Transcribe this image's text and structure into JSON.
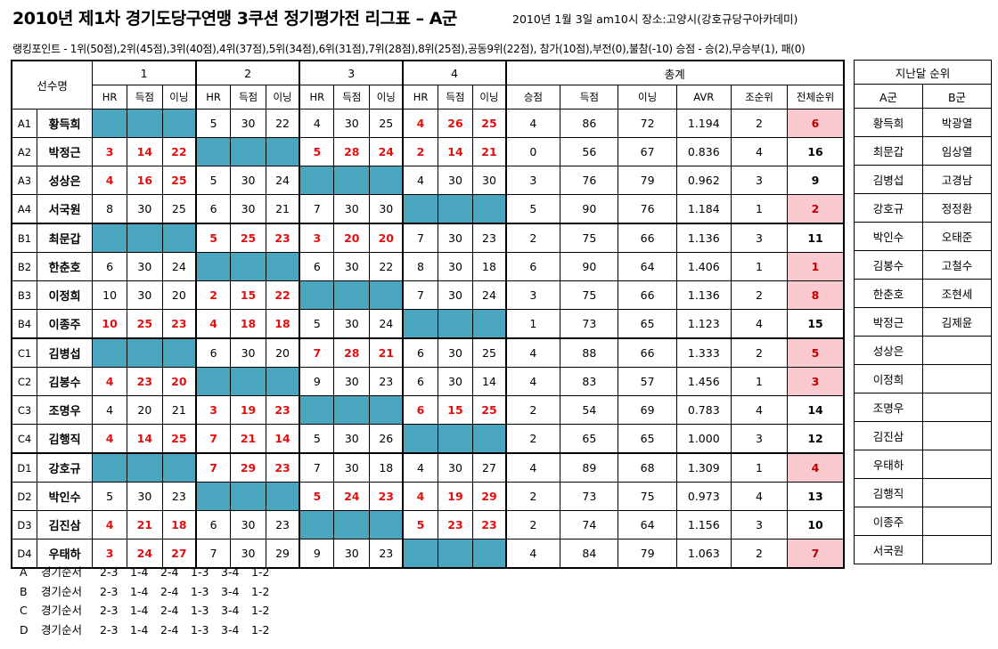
{
  "header": {
    "title": "2010년 제1차 경기도당구연맹 3쿠션 정기평가전 리그표 – A군",
    "meta": "2010년 1월 3일 am10시  장소:고양시(강호규당구아카데미)",
    "points": "랭킹포인트 - 1위(50점),2위(45점),3위(40점),4위(37점),5위(34점),6위(31점),7위(28점),8위(25점),공동9위(22점), 참가(10점),부전(0),불참(-10)  승점 - 승(2),무승부(1), 패(0)"
  },
  "table": {
    "player_col": "선수명",
    "rounds": [
      "1",
      "2",
      "3",
      "4"
    ],
    "total": "총계",
    "sub": [
      "HR",
      "득점",
      "이닝"
    ],
    "total_sub": [
      "승점",
      "득점",
      "이닝",
      "AVR",
      "조순위",
      "전체순위"
    ],
    "rows": [
      {
        "id": "A1",
        "name": "황득희",
        "r": [
          null,
          [
            "5",
            "30",
            "22"
          ],
          [
            "4",
            "30",
            "25"
          ],
          [
            "4",
            "26",
            "25"
          ]
        ],
        "red": [
          0,
          0,
          0,
          1
        ],
        "t": [
          "4",
          "86",
          "72",
          "1.194",
          "2",
          "6"
        ],
        "pink": true
      },
      {
        "id": "A2",
        "name": "박정근",
        "r": [
          [
            "3",
            "14",
            "22"
          ],
          null,
          [
            "5",
            "28",
            "24"
          ],
          [
            "2",
            "14",
            "21"
          ]
        ],
        "red": [
          1,
          0,
          1,
          1
        ],
        "t": [
          "0",
          "56",
          "67",
          "0.836",
          "4",
          "16"
        ],
        "pink": false
      },
      {
        "id": "A3",
        "name": "성상은",
        "r": [
          [
            "4",
            "16",
            "25"
          ],
          [
            "5",
            "30",
            "24"
          ],
          null,
          [
            "4",
            "30",
            "30"
          ]
        ],
        "red": [
          1,
          0,
          0,
          0
        ],
        "t": [
          "3",
          "76",
          "79",
          "0.962",
          "3",
          "9"
        ],
        "pink": false
      },
      {
        "id": "A4",
        "name": "서국원",
        "r": [
          [
            "8",
            "30",
            "25"
          ],
          [
            "6",
            "30",
            "21"
          ],
          [
            "7",
            "30",
            "30"
          ],
          null
        ],
        "red": [
          0,
          0,
          0,
          0
        ],
        "t": [
          "5",
          "90",
          "76",
          "1.184",
          "1",
          "2"
        ],
        "pink": true
      },
      {
        "id": "B1",
        "name": "최문갑",
        "r": [
          null,
          [
            "5",
            "25",
            "23"
          ],
          [
            "3",
            "20",
            "20"
          ],
          [
            "7",
            "30",
            "23"
          ]
        ],
        "red": [
          0,
          1,
          1,
          0
        ],
        "t": [
          "2",
          "75",
          "66",
          "1.136",
          "3",
          "11"
        ],
        "pink": false
      },
      {
        "id": "B2",
        "name": "한춘호",
        "r": [
          [
            "6",
            "30",
            "24"
          ],
          null,
          [
            "6",
            "30",
            "22"
          ],
          [
            "8",
            "30",
            "18"
          ]
        ],
        "red": [
          0,
          0,
          0,
          0
        ],
        "t": [
          "6",
          "90",
          "64",
          "1.406",
          "1",
          "1"
        ],
        "pink": true
      },
      {
        "id": "B3",
        "name": "이정희",
        "r": [
          [
            "10",
            "30",
            "20"
          ],
          [
            "2",
            "15",
            "22"
          ],
          null,
          [
            "7",
            "30",
            "24"
          ]
        ],
        "red": [
          0,
          1,
          0,
          0
        ],
        "t": [
          "3",
          "75",
          "66",
          "1.136",
          "2",
          "8"
        ],
        "pink": true
      },
      {
        "id": "B4",
        "name": "이종주",
        "r": [
          [
            "10",
            "25",
            "23"
          ],
          [
            "4",
            "18",
            "18"
          ],
          [
            "5",
            "30",
            "24"
          ],
          null
        ],
        "red": [
          1,
          1,
          0,
          0
        ],
        "t": [
          "1",
          "73",
          "65",
          "1.123",
          "4",
          "15"
        ],
        "pink": false
      },
      {
        "id": "C1",
        "name": "김병섭",
        "r": [
          null,
          [
            "6",
            "30",
            "20"
          ],
          [
            "7",
            "28",
            "21"
          ],
          [
            "6",
            "30",
            "25"
          ]
        ],
        "red": [
          0,
          0,
          1,
          0
        ],
        "t": [
          "4",
          "88",
          "66",
          "1.333",
          "2",
          "5"
        ],
        "pink": true
      },
      {
        "id": "C2",
        "name": "김봉수",
        "r": [
          [
            "4",
            "23",
            "20"
          ],
          null,
          [
            "9",
            "30",
            "23"
          ],
          [
            "6",
            "30",
            "14"
          ]
        ],
        "red": [
          1,
          0,
          0,
          0
        ],
        "t": [
          "4",
          "83",
          "57",
          "1.456",
          "1",
          "3"
        ],
        "pink": true
      },
      {
        "id": "C3",
        "name": "조명우",
        "r": [
          [
            "4",
            "20",
            "21"
          ],
          [
            "3",
            "19",
            "23"
          ],
          null,
          [
            "6",
            "15",
            "25"
          ]
        ],
        "red": [
          0,
          1,
          0,
          1
        ],
        "t": [
          "2",
          "54",
          "69",
          "0.783",
          "4",
          "14"
        ],
        "pink": false
      },
      {
        "id": "C4",
        "name": "김행직",
        "r": [
          [
            "4",
            "14",
            "25"
          ],
          [
            "7",
            "21",
            "14"
          ],
          [
            "5",
            "30",
            "26"
          ],
          null
        ],
        "red": [
          1,
          1,
          0,
          0
        ],
        "t": [
          "2",
          "65",
          "65",
          "1.000",
          "3",
          "12"
        ],
        "pink": false
      },
      {
        "id": "D1",
        "name": "강호규",
        "r": [
          null,
          [
            "7",
            "29",
            "23"
          ],
          [
            "7",
            "30",
            "18"
          ],
          [
            "4",
            "30",
            "27"
          ]
        ],
        "red": [
          0,
          1,
          0,
          0
        ],
        "t": [
          "4",
          "89",
          "68",
          "1.309",
          "1",
          "4"
        ],
        "pink": true
      },
      {
        "id": "D2",
        "name": "박인수",
        "r": [
          [
            "5",
            "30",
            "23"
          ],
          null,
          [
            "5",
            "24",
            "23"
          ],
          [
            "4",
            "19",
            "29"
          ]
        ],
        "red": [
          0,
          0,
          1,
          1
        ],
        "t": [
          "2",
          "73",
          "75",
          "0.973",
          "4",
          "13"
        ],
        "pink": false
      },
      {
        "id": "D3",
        "name": "김진삼",
        "r": [
          [
            "4",
            "21",
            "18"
          ],
          [
            "6",
            "30",
            "23"
          ],
          null,
          [
            "5",
            "23",
            "23"
          ]
        ],
        "red": [
          1,
          0,
          0,
          1
        ],
        "t": [
          "2",
          "74",
          "64",
          "1.156",
          "3",
          "10"
        ],
        "pink": false
      },
      {
        "id": "D4",
        "name": "우태하",
        "r": [
          [
            "3",
            "24",
            "27"
          ],
          [
            "7",
            "30",
            "29"
          ],
          [
            "9",
            "30",
            "23"
          ],
          null
        ],
        "red": [
          1,
          0,
          0,
          0
        ],
        "t": [
          "4",
          "84",
          "79",
          "1.063",
          "2",
          "7"
        ],
        "pink": true
      }
    ]
  },
  "side": {
    "title": "지난달 순위",
    "cols": [
      "A군",
      "B군"
    ],
    "rows": [
      [
        "황득희",
        "박광열"
      ],
      [
        "최문갑",
        "임상열"
      ],
      [
        "김병섭",
        "고경남"
      ],
      [
        "강호규",
        "정정환"
      ],
      [
        "박인수",
        "오태준"
      ],
      [
        "김봉수",
        "고철수"
      ],
      [
        "한춘호",
        "조현세"
      ],
      [
        "박정근",
        "김제윤"
      ],
      [
        "성상은",
        ""
      ],
      [
        "이정희",
        ""
      ],
      [
        "조명우",
        ""
      ],
      [
        "김진삼",
        ""
      ],
      [
        "우태하",
        ""
      ],
      [
        "김행직",
        ""
      ],
      [
        "이종주",
        ""
      ],
      [
        "서국원",
        ""
      ]
    ]
  },
  "orders": [
    {
      "group": "A",
      "label": "경기순서",
      "pairs": [
        "2-3",
        "1-4",
        "2-4",
        "1-3",
        "3-4",
        "1-2"
      ]
    },
    {
      "group": "B",
      "label": "경기순서",
      "pairs": [
        "2-3",
        "1-4",
        "2-4",
        "1-3",
        "3-4",
        "1-2"
      ]
    },
    {
      "group": "C",
      "label": "경기순서",
      "pairs": [
        "2-3",
        "1-4",
        "2-4",
        "1-3",
        "3-4",
        "1-2"
      ]
    },
    {
      "group": "D",
      "label": "경기순서",
      "pairs": [
        "2-3",
        "1-4",
        "2-4",
        "1-3",
        "3-4",
        "1-2"
      ]
    }
  ]
}
